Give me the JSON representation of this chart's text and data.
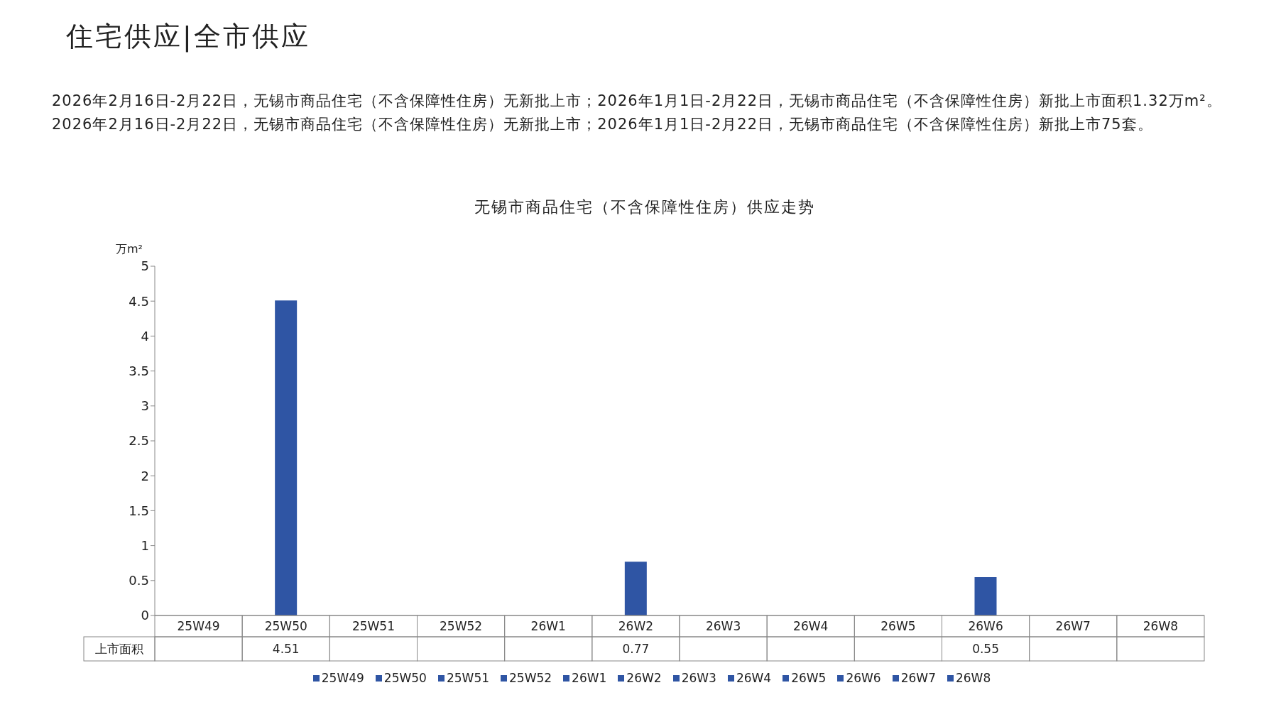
{
  "chart_data": {
    "type": "bar",
    "title": "住宅供应|全市供应",
    "subtitle": "2026年2月16日-2月22日，无锡市商品住宅（不含保障性住房）无新批上市；2026年1月1日-2月22日，无锡市商品住宅（不含保障性住房）新批上市面积1.32万m²。2026年2月16日-2月22日，无锡市商品住宅（不含保障性住房）无新批上市；2026年1月1日-2月22日，无锡市商品住宅（不含保障性住房）新批上市75套。",
    "annotations": [
      "无锡市商品住宅（不含保障性住房）供应走势"
    ],
    "ylabel": "万m²",
    "categories": [
      "25W49",
      "25W50",
      "25W51",
      "25W52",
      "26W1",
      "26W2",
      "26W3",
      "26W4",
      "26W5",
      "26W6",
      "26W7",
      "26W8"
    ],
    "series": [
      {
        "name": "上市面积",
        "color": "#2f55a4",
        "values": [
          null,
          4.51,
          null,
          null,
          null,
          0.77,
          null,
          null,
          null,
          0.55,
          null,
          null
        ]
      }
    ],
    "ylim": [
      0,
      5
    ],
    "yticks": [
      0,
      0.5,
      1,
      1.5,
      2,
      2.5,
      3,
      3.5,
      4,
      4.5,
      5
    ],
    "data_labels": true,
    "legend": "bottom",
    "grid": false
  }
}
